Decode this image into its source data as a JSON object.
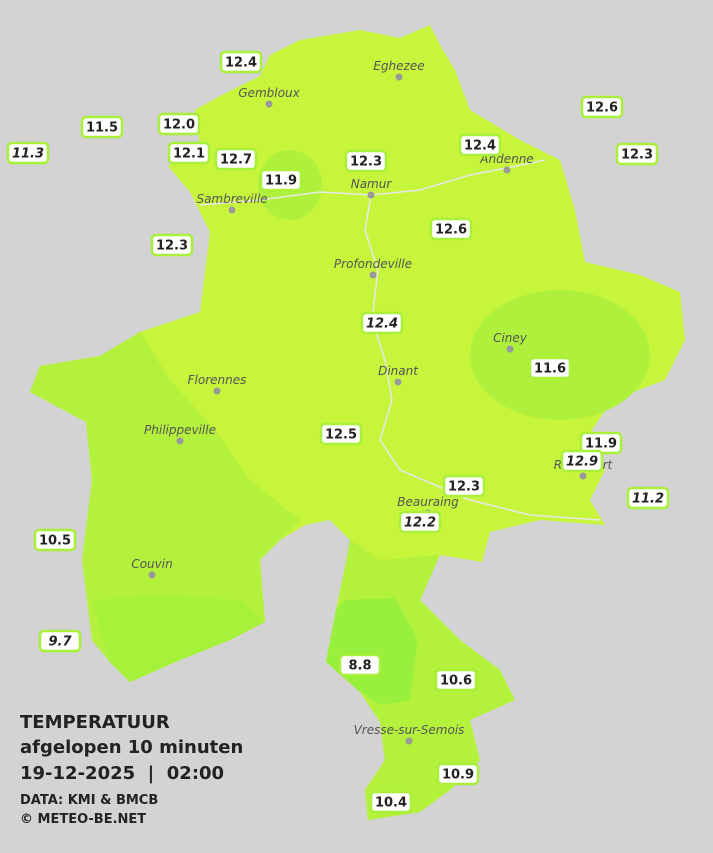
{
  "title": "TEMPERATUUR",
  "subtitle": "afgelopen 10 minuten",
  "datetime": "19-12-2025  |  02:00",
  "source": "DATA: KMI & BMCB",
  "credit": "© METEO-BE.NET",
  "towns": [
    "Eghezee",
    "Gembloux",
    "Andenne",
    "Namur",
    "Sambreville",
    "Profondeville",
    "Ciney",
    "Florennes",
    "Dinant",
    "Philippeville",
    "Rochefort",
    "Beauraing",
    "Couvin",
    "Vresse-sur-Semois"
  ],
  "stations": [
    {
      "value": "12.4",
      "italic": false
    },
    {
      "value": "11.5",
      "italic": false
    },
    {
      "value": "12.0",
      "italic": false
    },
    {
      "value": "11.3",
      "italic": true
    },
    {
      "value": "12.1",
      "italic": false
    },
    {
      "value": "12.7",
      "italic": false
    },
    {
      "value": "11.9",
      "italic": false
    },
    {
      "value": "12.3",
      "italic": false
    },
    {
      "value": "12.4",
      "italic": false
    },
    {
      "value": "12.6",
      "italic": false
    },
    {
      "value": "12.3",
      "italic": false
    },
    {
      "value": "12.3",
      "italic": false
    },
    {
      "value": "12.6",
      "italic": false
    },
    {
      "value": "12.4",
      "italic": true
    },
    {
      "value": "11.6",
      "italic": false
    },
    {
      "value": "12.5",
      "italic": false
    },
    {
      "value": "11.9",
      "italic": false
    },
    {
      "value": "12.9",
      "italic": true
    },
    {
      "value": "11.2",
      "italic": true
    },
    {
      "value": "12.3",
      "italic": false
    },
    {
      "value": "12.2",
      "italic": true
    },
    {
      "value": "10.5",
      "italic": false
    },
    {
      "value": "9.7",
      "italic": true
    },
    {
      "value": "8.8",
      "italic": false
    },
    {
      "value": "10.6",
      "italic": false
    },
    {
      "value": "10.9",
      "italic": false
    },
    {
      "value": "10.4",
      "italic": false
    }
  ]
}
